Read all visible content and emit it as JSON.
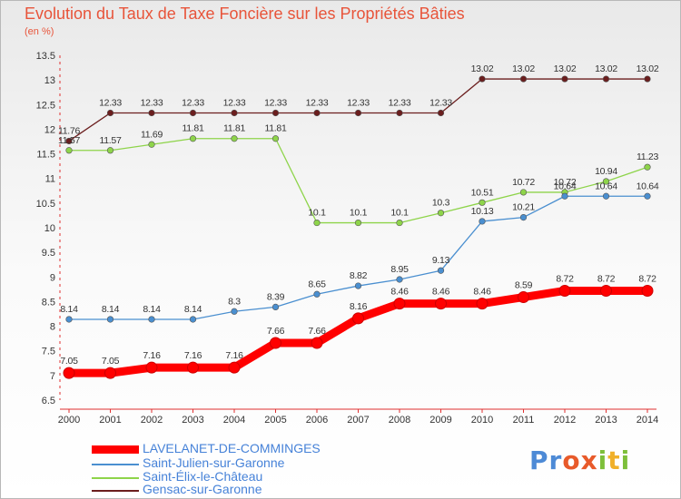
{
  "chart_data": {
    "type": "line",
    "title": "Evolution du Taux de Taxe Foncière sur les Propriétés Bâties",
    "subtitle": "(en %)",
    "x": [
      "2000",
      "2001",
      "2002",
      "2003",
      "2004",
      "2005",
      "2006",
      "2007",
      "2008",
      "2009",
      "2010",
      "2011",
      "2012",
      "2013",
      "2014"
    ],
    "ylim": [
      6.5,
      13.5
    ],
    "yticks": [
      "6.5",
      "7",
      "7.5",
      "8",
      "8.5",
      "9",
      "9.5",
      "10",
      "10.5",
      "11",
      "11.5",
      "12",
      "12.5",
      "13",
      "13.5"
    ],
    "grid": false,
    "legend_position": "bottom-left",
    "series": [
      {
        "name": "LAVELANET-DE-COMMINGES",
        "color": "#ff0000",
        "values": [
          7.05,
          7.05,
          7.16,
          7.16,
          7.16,
          7.66,
          7.66,
          8.16,
          8.46,
          8.46,
          8.46,
          8.59,
          8.72,
          8.72,
          8.72
        ],
        "labels": [
          "7.05",
          "7.05",
          "7.16",
          "7.16",
          "7.16",
          "7.66",
          "7.66",
          "8.16",
          "8.46",
          "8.46",
          "8.46",
          "8.59",
          "8.72",
          "8.72",
          "8.72"
        ]
      },
      {
        "name": "Saint-Julien-sur-Garonne",
        "color": "#4a8fd0",
        "values": [
          8.14,
          8.14,
          8.14,
          8.14,
          8.3,
          8.39,
          8.65,
          8.82,
          8.95,
          9.13,
          10.13,
          10.21,
          10.64,
          10.64,
          10.64
        ],
        "labels": [
          "8.14",
          "8.14",
          "8.14",
          "8.14",
          "8.3",
          "8.39",
          "8.65",
          "8.82",
          "8.95",
          "9.13",
          "10.13",
          "10.21",
          "10.64",
          "10.64",
          "10.64"
        ]
      },
      {
        "name": "Saint-Élix-le-Château",
        "color": "#8ed44a",
        "values": [
          11.57,
          11.57,
          11.69,
          11.81,
          11.81,
          11.81,
          10.1,
          10.1,
          10.1,
          10.3,
          10.51,
          10.72,
          10.72,
          10.94,
          11.23
        ],
        "labels": [
          "11.57",
          "11.57",
          "11.69",
          "11.81",
          "11.81",
          "11.81",
          "10.1",
          "10.1",
          "10.1",
          "10.3",
          "10.51",
          "10.72",
          "10.72",
          "10.94",
          "11.23"
        ]
      },
      {
        "name": "Gensac-sur-Garonne",
        "color": "#6b1e1e",
        "values": [
          11.76,
          12.33,
          12.33,
          12.33,
          12.33,
          12.33,
          12.33,
          12.33,
          12.33,
          12.33,
          13.02,
          13.02,
          13.02,
          13.02,
          13.02
        ],
        "labels": [
          "11.76",
          "12.33",
          "12.33",
          "12.33",
          "12.33",
          "12.33",
          "12.33",
          "12.33",
          "12.33",
          "12.33",
          "13.02",
          "13.02",
          "13.02",
          "13.02",
          "13.02"
        ]
      }
    ]
  },
  "legend": [
    {
      "label": "LAVELANET-DE-COMMINGES",
      "color": "#ff0000"
    },
    {
      "label": "Saint-Julien-sur-Garonne",
      "color": "#4a8fd0"
    },
    {
      "label": "Saint-Élix-le-Château",
      "color": "#8ed44a"
    },
    {
      "label": "Gensac-sur-Garonne",
      "color": "#6b1e1e"
    }
  ],
  "logo": {
    "p1": "Pr",
    "p2": "o",
    "p3": "x",
    "p4": "i",
    "p5": "t",
    "p6": "i"
  }
}
